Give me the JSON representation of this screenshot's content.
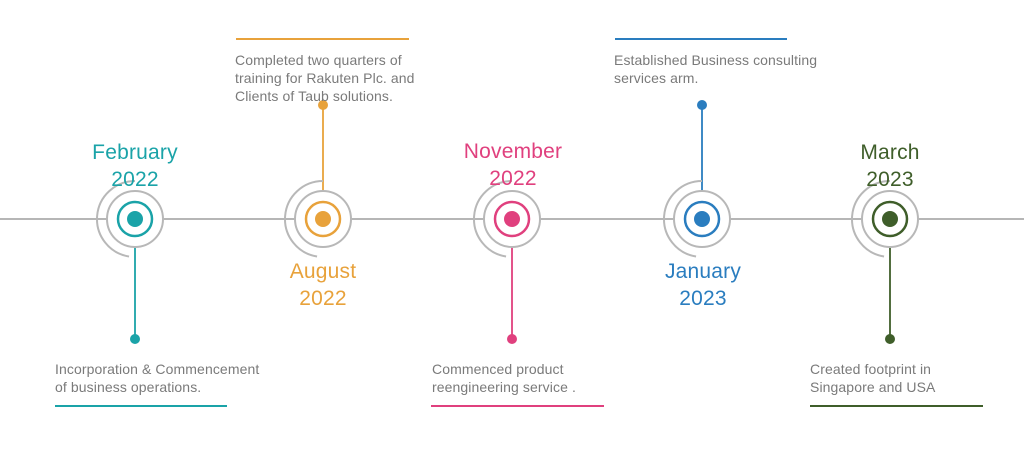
{
  "milestones": [
    {
      "month": "February",
      "year": "2022",
      "color": "#1aa3a8",
      "position": "below",
      "description": [
        "Incorporation & Commencement",
        "of business operations."
      ]
    },
    {
      "month": "August",
      "year": "2022",
      "color": "#e8a23b",
      "position": "above",
      "description": [
        "Completed  two quarters of",
        "training for Rakuten Plc. and",
        "Clients of Taub solutions."
      ]
    },
    {
      "month": "November",
      "year": "2022",
      "color": "#e0407e",
      "position": "below",
      "description": [
        "Commenced product",
        "reengineering service ."
      ]
    },
    {
      "month": "January",
      "year": "2023",
      "color": "#2a7dbf",
      "position": "above",
      "description": [
        "Established Business consulting",
        "services arm."
      ]
    },
    {
      "month": "March",
      "year": "2023",
      "color": "#3f5e2a",
      "position": "below",
      "description": [
        "Created footprint in",
        "Singapore and USA"
      ]
    }
  ],
  "colors": {
    "axis": "#9e9e9e",
    "ring": "#b8b8b8",
    "text": "#7a7a7a"
  }
}
